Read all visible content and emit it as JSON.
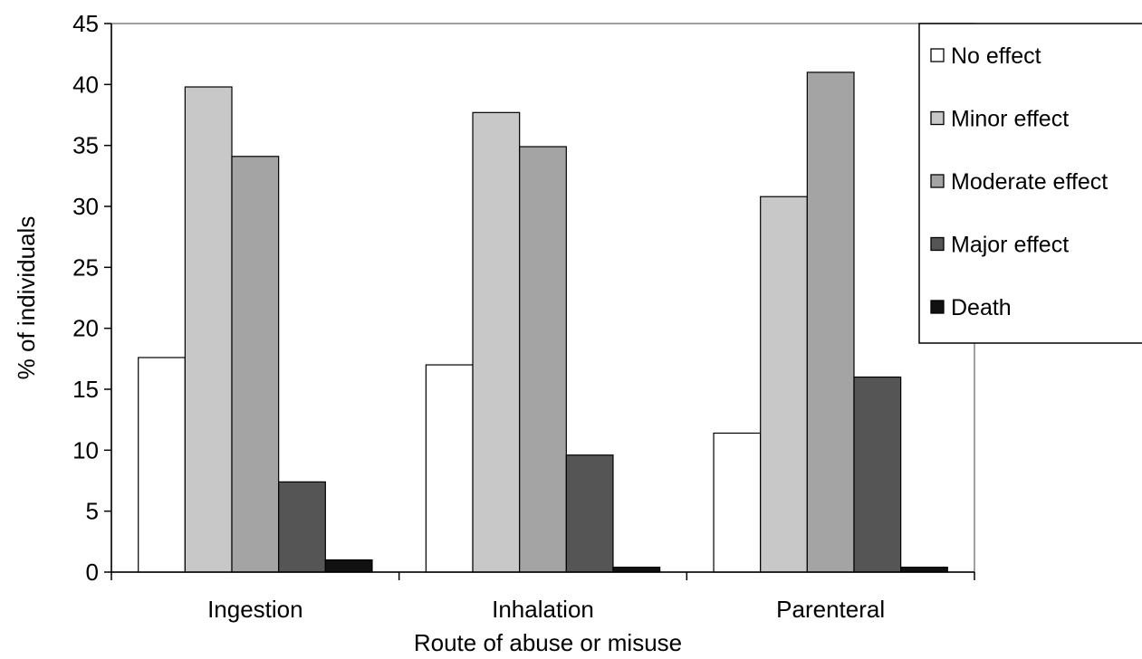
{
  "chart_data": {
    "type": "bar",
    "title": "",
    "xlabel": "Route of abuse or misuse",
    "ylabel": "% of individuals",
    "ylim": [
      0,
      45
    ],
    "yticks": [
      "0",
      "5",
      "10",
      "15",
      "20",
      "25",
      "30",
      "35",
      "40",
      "45"
    ],
    "grid": false,
    "legend_position": "top-right",
    "categories": [
      "Ingestion",
      "Inhalation",
      "Parenteral"
    ],
    "series": [
      {
        "name": "No effect",
        "color": "#ffffff",
        "values": [
          17.6,
          17.0,
          11.4
        ]
      },
      {
        "name": "Minor effect",
        "color": "#c8c8c8",
        "values": [
          39.8,
          37.7,
          30.8
        ]
      },
      {
        "name": "Moderate effect",
        "color": "#a4a4a4",
        "values": [
          34.1,
          34.9,
          41.0
        ]
      },
      {
        "name": "Major effect",
        "color": "#555555",
        "values": [
          7.4,
          9.6,
          16.0
        ]
      },
      {
        "name": "Death",
        "color": "#111111",
        "values": [
          1.0,
          0.4,
          0.4
        ]
      }
    ]
  }
}
